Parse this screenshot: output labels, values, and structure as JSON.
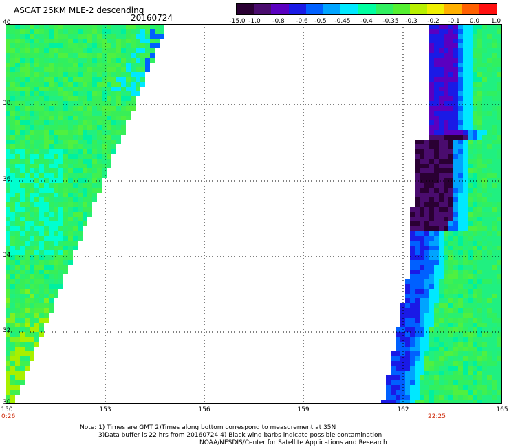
{
  "header": {
    "title": "ASCAT 25KM MLE-2 descending",
    "date": "20160724"
  },
  "colorbar": {
    "labels": [
      "-15.0",
      "-1.0",
      "-0.8",
      "-0.6",
      "-0.5",
      "-0.45",
      "-0.4",
      "-0.35",
      "-0.3",
      "-0.2",
      "-0.1",
      "0.0",
      "1.0"
    ],
    "colors": [
      "#2a0033",
      "#4a0c6e",
      "#5a00c0",
      "#1a1ae6",
      "#0060ff",
      "#00a4ff",
      "#00e8ff",
      "#00ffa0",
      "#30f060",
      "#55f030",
      "#b8f000",
      "#f0f000",
      "#ffb000",
      "#ff6000",
      "#ff1010"
    ]
  },
  "axes": {
    "y_labels": [
      "40",
      "38",
      "36",
      "34",
      "32",
      "30"
    ],
    "x_labels": [
      "150",
      "153",
      "156",
      "159",
      "162",
      "165"
    ],
    "x_range": [
      150,
      165
    ],
    "y_range": [
      30,
      40
    ]
  },
  "times": {
    "left": "0:26",
    "right": "22:25"
  },
  "notes": {
    "line1": "Note: 1) Times are GMT 2)Times along bottom correspond to measurement at 35N",
    "line2": "3)Data buffer is 22 hrs from 20160724 4) Black wind barbs indicate possible contamination",
    "line3": "NOAA/NESDIS/Center for Satellite Applications and Research"
  }
}
